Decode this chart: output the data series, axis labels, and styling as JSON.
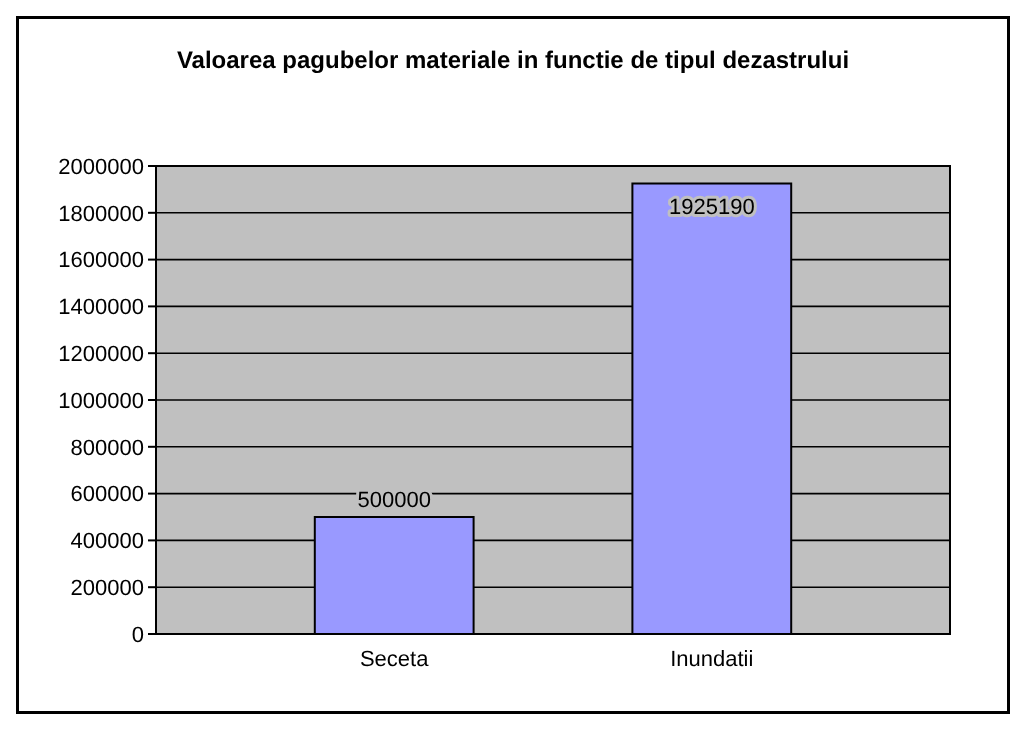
{
  "chart_data": {
    "type": "bar",
    "title": "Valoarea pagubelor materiale in functie de tipul dezastrului",
    "categories": [
      "Seceta",
      "Inundatii"
    ],
    "values": [
      500000,
      1925190
    ],
    "color": "#9999ff",
    "ylim": [
      0,
      2000000
    ],
    "yticks": [
      0,
      200000,
      400000,
      600000,
      800000,
      1000000,
      1200000,
      1400000,
      1600000,
      1800000,
      2000000
    ],
    "grid": "y",
    "data_labels": true
  }
}
